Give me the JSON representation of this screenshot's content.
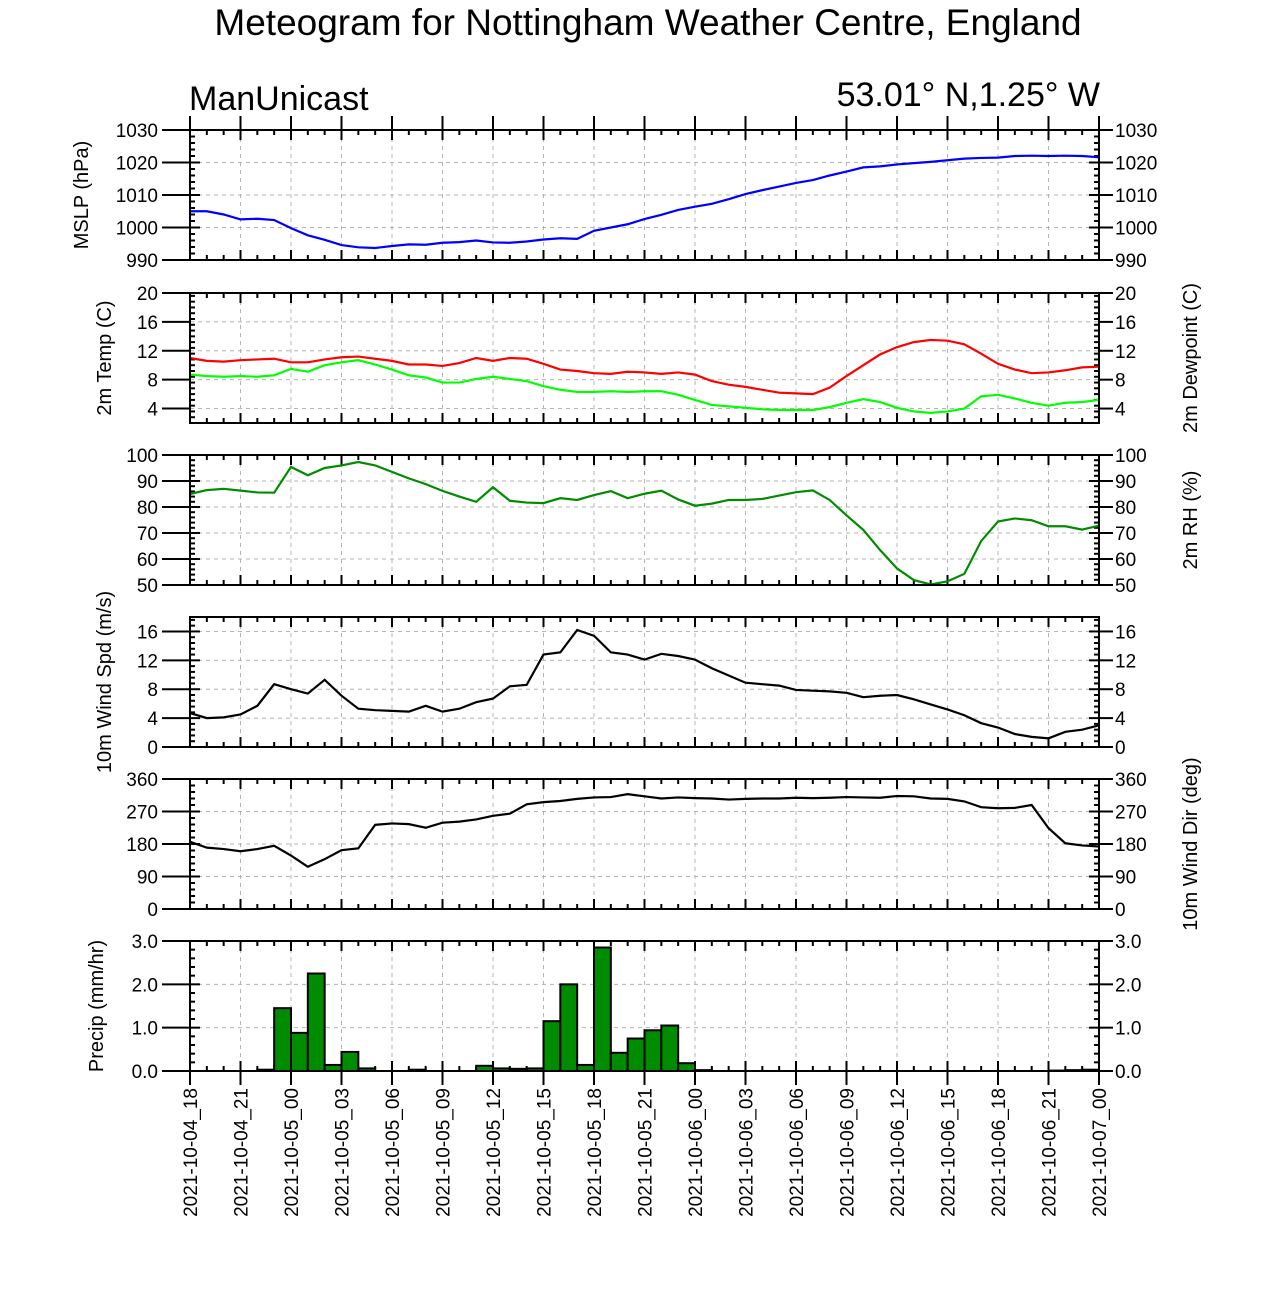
{
  "title": "Meteogram for Nottingham Weather Centre, England",
  "model": "ManUnicast",
  "location": "53.01° N,1.25° W",
  "x_tick_labels": [
    "2021-10-04_18",
    "2021-10-04_21",
    "2021-10-05_00",
    "2021-10-05_03",
    "2021-10-05_06",
    "2021-10-05_09",
    "2021-10-05_12",
    "2021-10-05_15",
    "2021-10-05_18",
    "2021-10-05_21",
    "2021-10-06_00",
    "2021-10-06_03",
    "2021-10-06_06",
    "2021-10-06_09",
    "2021-10-06_12",
    "2021-10-06_15",
    "2021-10-06_18",
    "2021-10-06_21",
    "2021-10-07_00"
  ],
  "colors": {
    "mslp": "#0000ff",
    "temp": "#ff0000",
    "dewpoint": "#00ff00",
    "rh": "#008c00",
    "wind": "#000000",
    "precip": "#008c00",
    "grid": "#b4b4b4"
  },
  "chart_data": [
    {
      "type": "line",
      "ylabel_left": "MSLP (hPa)",
      "ylabel_right": "",
      "ylim": [
        990,
        1030
      ],
      "y_ticks": [
        990,
        1000,
        1010,
        1020,
        1030
      ],
      "y_tick_labels": [
        "990",
        "1000",
        "1010",
        "1020",
        "1030"
      ],
      "x_range_hours": [
        0,
        54
      ],
      "series": [
        {
          "color": "#0000ff",
          "x": [
            0,
            1,
            2,
            3,
            4,
            5,
            6,
            7,
            8,
            9,
            10,
            11,
            12,
            13,
            14,
            15,
            16,
            17,
            18,
            19,
            20,
            21,
            22,
            23,
            24,
            25,
            26,
            27,
            28,
            29,
            30,
            31,
            32,
            33,
            34,
            35,
            36,
            37,
            38,
            39,
            40,
            41,
            42,
            43,
            44,
            45,
            46,
            47,
            48,
            49,
            50,
            51,
            52,
            53,
            54
          ],
          "values": [
            1005,
            1005,
            1004,
            1002.5,
            1002.7,
            1002.3,
            999.8,
            997.6,
            996.2,
            994.6,
            993.9,
            993.7,
            994.3,
            994.8,
            994.7,
            995.3,
            995.5,
            996,
            995.4,
            995.3,
            995.7,
            996.3,
            996.7,
            996.5,
            999,
            1000,
            1001,
            1002.6,
            1003.9,
            1005.4,
            1006.4,
            1007.3,
            1008.7,
            1010.3,
            1011.5,
            1012.6,
            1013.7,
            1014.6,
            1016,
            1017.2,
            1018.5,
            1018.8,
            1019.4,
            1019.8,
            1020.2,
            1020.7,
            1021.2,
            1021.4,
            1021.5,
            1022,
            1022.1,
            1022,
            1022.1,
            1022,
            1021.6
          ]
        }
      ]
    },
    {
      "type": "line",
      "ylabel_left": "2m Temp (C)",
      "ylabel_right": "2m Dewpoint (C)",
      "ylim": [
        2,
        20
      ],
      "y_ticks": [
        4,
        8,
        12,
        16,
        20
      ],
      "y_tick_labels": [
        "4",
        "8",
        "12",
        "16",
        "20"
      ],
      "x_range_hours": [
        0,
        54
      ],
      "series": [
        {
          "color": "#ff0000",
          "x": [
            0,
            1,
            2,
            3,
            4,
            5,
            6,
            7,
            8,
            9,
            10,
            11,
            12,
            13,
            14,
            15,
            16,
            17,
            18,
            19,
            20,
            21,
            22,
            23,
            24,
            25,
            26,
            27,
            28,
            29,
            30,
            31,
            32,
            33,
            34,
            35,
            36,
            37,
            38,
            39,
            40,
            41,
            42,
            43,
            44,
            45,
            46,
            47,
            48,
            49,
            50,
            51,
            52,
            53,
            54
          ],
          "values": [
            11,
            10.6,
            10.5,
            10.7,
            10.8,
            10.9,
            10.4,
            10.4,
            10.8,
            11.1,
            11.2,
            10.9,
            10.6,
            10.1,
            10.1,
            9.9,
            10.3,
            11,
            10.6,
            11,
            10.9,
            10.2,
            9.4,
            9.2,
            8.9,
            8.8,
            9.1,
            9,
            8.8,
            9,
            8.7,
            7.8,
            7.3,
            7,
            6.6,
            6.2,
            6.1,
            6,
            6.9,
            8.5,
            10,
            11.5,
            12.5,
            13.2,
            13.5,
            13.4,
            12.9,
            11.6,
            10.2,
            9.4,
            8.9,
            9,
            9.3,
            9.7,
            9.8
          ]
        },
        {
          "color": "#00ff00",
          "x": [
            0,
            1,
            2,
            3,
            4,
            5,
            6,
            7,
            8,
            9,
            10,
            11,
            12,
            13,
            14,
            15,
            16,
            17,
            18,
            19,
            20,
            21,
            22,
            23,
            24,
            25,
            26,
            27,
            28,
            29,
            30,
            31,
            32,
            33,
            34,
            35,
            36,
            37,
            38,
            39,
            40,
            41,
            42,
            43,
            44,
            45,
            46,
            47,
            48,
            49,
            50,
            51,
            52,
            53,
            54
          ],
          "values": [
            8.7,
            8.5,
            8.4,
            8.5,
            8.4,
            8.6,
            9.5,
            9.1,
            10,
            10.4,
            10.7,
            10.1,
            9.4,
            8.6,
            8.3,
            7.6,
            7.6,
            8.1,
            8.4,
            8.1,
            7.8,
            7.1,
            6.6,
            6.3,
            6.3,
            6.4,
            6.3,
            6.4,
            6.4,
            5.9,
            5.2,
            4.5,
            4.3,
            4.1,
            3.9,
            3.8,
            3.8,
            3.8,
            4.2,
            4.8,
            5.3,
            4.9,
            4.1,
            3.6,
            3.4,
            3.6,
            4,
            5.7,
            5.9,
            5.4,
            4.8,
            4.4,
            4.8,
            4.9,
            5.2
          ]
        }
      ]
    },
    {
      "type": "line",
      "ylabel_left": "",
      "ylabel_right": "2m RH (%)",
      "ylim": [
        50,
        100
      ],
      "y_ticks": [
        50,
        60,
        70,
        80,
        90,
        100
      ],
      "y_tick_labels": [
        "50",
        "60",
        "70",
        "80",
        "90",
        "100"
      ],
      "x_range_hours": [
        0,
        54
      ],
      "series": [
        {
          "color": "#008c00",
          "x": [
            0,
            1,
            2,
            3,
            4,
            5,
            6,
            7,
            8,
            9,
            10,
            11,
            12,
            13,
            14,
            15,
            16,
            17,
            18,
            19,
            20,
            21,
            22,
            23,
            24,
            25,
            26,
            27,
            28,
            29,
            30,
            31,
            32,
            33,
            34,
            35,
            36,
            37,
            38,
            39,
            40,
            41,
            42,
            43,
            44,
            45,
            46,
            47,
            48,
            49,
            50,
            51,
            52,
            53,
            54
          ],
          "values": [
            85,
            86.5,
            87,
            86.3,
            85.6,
            85.5,
            95.4,
            92.2,
            95,
            96,
            97.3,
            96,
            93.5,
            91,
            88.8,
            86.2,
            84,
            82,
            87.6,
            82.4,
            81.7,
            81.5,
            83.4,
            82.7,
            84.6,
            86.1,
            83.4,
            85.1,
            86.3,
            82.9,
            80.5,
            81.3,
            82.7,
            82.7,
            83.1,
            84.4,
            85.7,
            86.4,
            82.7,
            76.8,
            71.2,
            63.4,
            56.4,
            51.9,
            50.2,
            51.4,
            54.3,
            66.9,
            74.4,
            75.6,
            74.9,
            72.6,
            72.6,
            71.3,
            72.8
          ]
        }
      ]
    },
    {
      "type": "line",
      "ylabel_left": "10m Wind Spd (m/s)",
      "ylabel_right": "",
      "ylim": [
        0,
        18
      ],
      "y_ticks": [
        0,
        4,
        8,
        12,
        16
      ],
      "y_tick_labels": [
        "0",
        "4",
        "8",
        "12",
        "16"
      ],
      "x_range_hours": [
        0,
        54
      ],
      "series": [
        {
          "color": "#000000",
          "x": [
            0,
            1,
            2,
            3,
            4,
            5,
            6,
            7,
            8,
            9,
            10,
            11,
            12,
            13,
            14,
            15,
            16,
            17,
            18,
            19,
            20,
            21,
            22,
            23,
            24,
            25,
            26,
            27,
            28,
            29,
            30,
            31,
            32,
            33,
            34,
            35,
            36,
            37,
            38,
            39,
            40,
            41,
            42,
            43,
            44,
            45,
            46,
            47,
            48,
            49,
            50,
            51,
            52,
            53,
            54
          ],
          "values": [
            4.7,
            4,
            4.1,
            4.5,
            5.7,
            8.7,
            8,
            7.4,
            9.3,
            7.1,
            5.3,
            5.1,
            5,
            4.9,
            5.7,
            4.9,
            5.3,
            6.2,
            6.7,
            8.4,
            8.6,
            12.8,
            13.1,
            16.2,
            15.4,
            13.1,
            12.8,
            12.1,
            12.9,
            12.6,
            12.1,
            10.9,
            9.9,
            8.9,
            8.7,
            8.5,
            7.9,
            7.8,
            7.7,
            7.5,
            6.9,
            7.1,
            7.2,
            6.6,
            5.9,
            5.2,
            4.4,
            3.3,
            2.7,
            1.8,
            1.4,
            1.2,
            2.1,
            2.4,
            3
          ]
        }
      ]
    },
    {
      "type": "line",
      "ylabel_left": "",
      "ylabel_right": "10m Wind Dir (deg)",
      "ylim": [
        0,
        360
      ],
      "y_ticks": [
        0,
        90,
        180,
        270,
        360
      ],
      "y_tick_labels": [
        "0",
        "90",
        "180",
        "270",
        "360"
      ],
      "x_range_hours": [
        0,
        54
      ],
      "series": [
        {
          "color": "#000000",
          "x": [
            0,
            1,
            2,
            3,
            4,
            5,
            6,
            7,
            8,
            9,
            10,
            11,
            12,
            13,
            14,
            15,
            16,
            17,
            18,
            19,
            20,
            21,
            22,
            23,
            24,
            25,
            26,
            27,
            28,
            29,
            30,
            31,
            32,
            33,
            34,
            35,
            36,
            37,
            38,
            39,
            40,
            41,
            42,
            43,
            44,
            45,
            46,
            47,
            48,
            49,
            50,
            51,
            52,
            53,
            54
          ],
          "values": [
            186,
            170,
            166,
            160,
            166,
            175,
            148,
            117,
            138,
            163,
            168,
            233,
            237,
            235,
            225,
            239,
            242,
            248,
            258,
            264,
            290,
            296,
            299,
            305,
            309,
            310,
            318,
            312,
            306,
            309,
            307,
            306,
            303,
            305,
            306,
            306,
            308,
            307,
            308,
            310,
            309,
            308,
            313,
            312,
            306,
            305,
            298,
            282,
            279,
            280,
            288,
            224,
            182,
            176,
            173
          ]
        }
      ]
    },
    {
      "type": "bar",
      "ylabel_left": "Precip (mm/hr)",
      "ylabel_right": "",
      "ylim": [
        0,
        3
      ],
      "y_ticks": [
        0,
        1,
        2,
        3
      ],
      "y_tick_labels": [
        "0.0",
        "1.0",
        "2.0",
        "3.0"
      ],
      "x_range_hours": [
        0,
        54
      ],
      "series": [
        {
          "color": "#008c00",
          "x": [
            4,
            5,
            6,
            7,
            8,
            9,
            10,
            13,
            17,
            18,
            19,
            20,
            21,
            22,
            23,
            24,
            25,
            26,
            27,
            28,
            29,
            30,
            51,
            52,
            53
          ],
          "values": [
            0.03,
            1.45,
            0.88,
            2.25,
            0.14,
            0.44,
            0.06,
            0.03,
            0.12,
            0.06,
            0.05,
            0.06,
            1.15,
            2.0,
            0.14,
            2.85,
            0.42,
            0.75,
            0.94,
            1.05,
            0.18,
            0.02,
            0.01,
            0.02,
            0.03
          ]
        }
      ]
    }
  ]
}
